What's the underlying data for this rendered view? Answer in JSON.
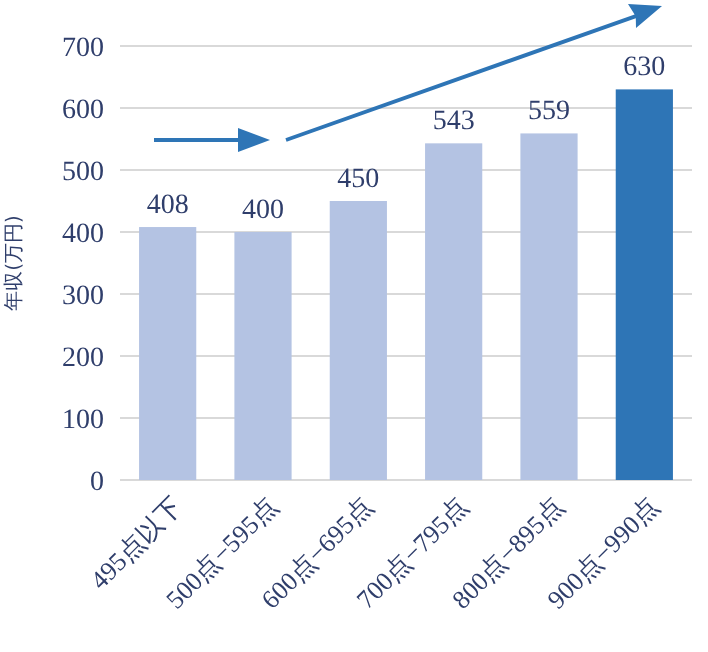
{
  "chart_data": {
    "type": "bar",
    "ylabel": "年収(万円)",
    "categories": [
      "495点以下",
      "500点−595点",
      "600点−695点",
      "700点−795点",
      "800点−895点",
      "900点−990点"
    ],
    "values": [
      408,
      400,
      450,
      543,
      559,
      630
    ],
    "colors": [
      "#b4c3e3",
      "#b4c3e3",
      "#b4c3e3",
      "#b4c3e3",
      "#b4c3e3",
      "#2e75b6"
    ],
    "ylim": [
      0,
      700
    ],
    "yticks": [
      0,
      100,
      200,
      300,
      400,
      500,
      600,
      700
    ],
    "grid": "y",
    "data_labels": true
  }
}
